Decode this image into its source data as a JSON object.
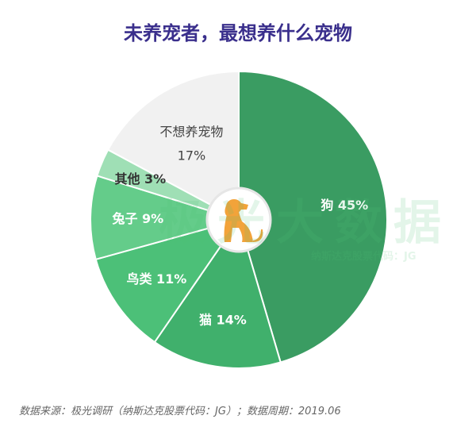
{
  "chart_data": {
    "type": "pie",
    "title": "未养宠者，最想养什么宠物",
    "start": "top",
    "direction": "clockwise",
    "slices": [
      {
        "label": "狗",
        "value": 45,
        "display": "狗 45%",
        "color": "#3a9c62",
        "text_color": "#ffffff"
      },
      {
        "label": "猫",
        "value": 14,
        "display": "猫 14%",
        "color": "#40b06c",
        "text_color": "#ffffff"
      },
      {
        "label": "鸟类",
        "value": 11,
        "display": "鸟类 11%",
        "color": "#4cc078",
        "text_color": "#ffffff"
      },
      {
        "label": "兔子",
        "value": 9,
        "display": "兔子 9%",
        "color": "#64cc8a",
        "text_color": "#ffffff"
      },
      {
        "label": "其他",
        "value": 3,
        "display": "其他 3%",
        "color": "#9fdfb5",
        "text_color": "#333333"
      },
      {
        "label": "不想养宠物",
        "value": 17,
        "display": "不想养宠物",
        "display2": "17%",
        "color": "#f1f1f1",
        "text_color": "#444444"
      }
    ],
    "center_icon": "dog-icon",
    "icon_color": "#f2a33a"
  },
  "source": "数据来源：极光调研（纳斯达克股票代码：JG）；数据周期：2019.06",
  "watermark": {
    "text": "极光大数据",
    "sub": "纳斯达克股票代码：JG"
  }
}
